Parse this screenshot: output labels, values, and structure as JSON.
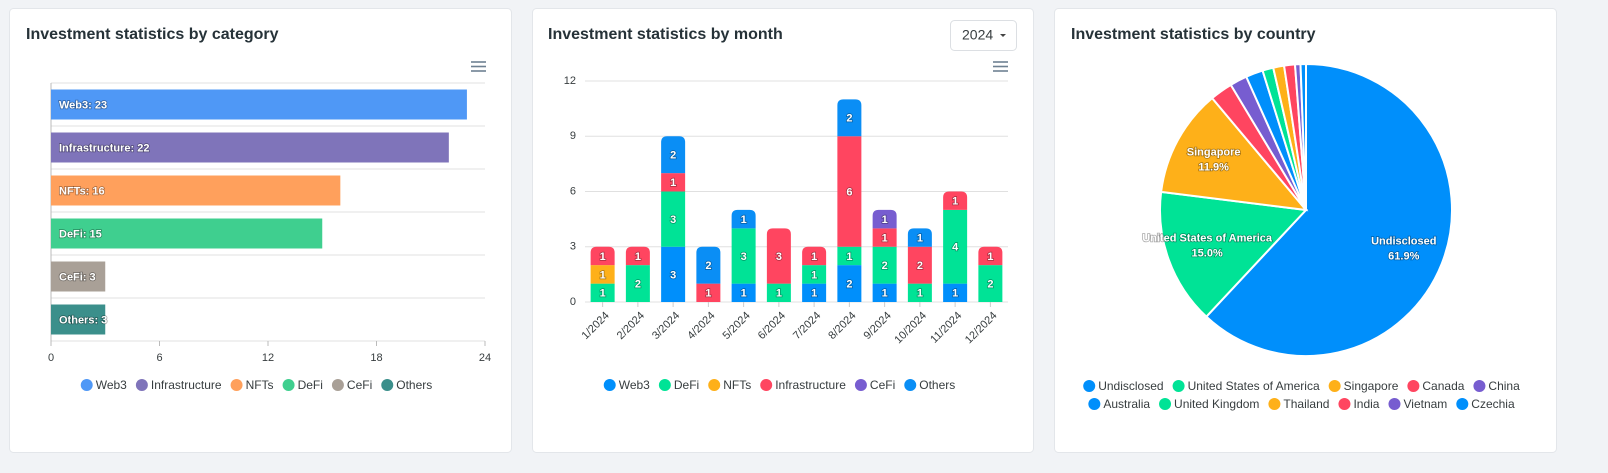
{
  "controls": {
    "year": "2024"
  },
  "chart_data": [
    {
      "type": "bar",
      "orientation": "horizontal",
      "title": "Investment statistics by category",
      "categories": [
        "Web3",
        "Infrastructure",
        "NFTs",
        "DeFi",
        "CeFi",
        "Others"
      ],
      "values": [
        23,
        22,
        16,
        15,
        3,
        3
      ],
      "value_labels": [
        "Web3: 23",
        "Infrastructure: 22",
        "NFTs: 16",
        "DeFi: 15",
        "CeFi: 3",
        "Others: 3"
      ],
      "colors": [
        "#4f98f6",
        "#7f74ba",
        "#ffa05c",
        "#3fcf8f",
        "#a9a097",
        "#3b8f8b"
      ],
      "xlim": [
        0,
        24
      ],
      "xticks": [
        0,
        6,
        12,
        18,
        24
      ],
      "legend": "bottom"
    },
    {
      "type": "stacked_bar",
      "title": "Investment statistics by month",
      "categories": [
        "1/2024",
        "2/2024",
        "3/2024",
        "4/2024",
        "5/2024",
        "6/2024",
        "7/2024",
        "8/2024",
        "9/2024",
        "10/2024",
        "11/2024",
        "12/2024"
      ],
      "series": [
        {
          "name": "Web3",
          "color": "#008ffb",
          "values": [
            0,
            0,
            3,
            0,
            1,
            0,
            1,
            2,
            1,
            0,
            1,
            0
          ]
        },
        {
          "name": "DeFi",
          "color": "#00e396",
          "values": [
            1,
            2,
            3,
            0,
            3,
            1,
            1,
            1,
            2,
            1,
            4,
            2
          ]
        },
        {
          "name": "NFTs",
          "color": "#feb019",
          "values": [
            1,
            0,
            0,
            0,
            0,
            0,
            0,
            0,
            0,
            0,
            0,
            0
          ]
        },
        {
          "name": "Infrastructure",
          "color": "#ff4560",
          "values": [
            1,
            1,
            1,
            1,
            0,
            3,
            1,
            6,
            1,
            2,
            1,
            1
          ]
        },
        {
          "name": "CeFi",
          "color": "#775dd0",
          "values": [
            0,
            0,
            0,
            0,
            0,
            0,
            0,
            0,
            1,
            0,
            0,
            0
          ]
        },
        {
          "name": "Others",
          "color": "#0a8ef5",
          "values": [
            0,
            0,
            2,
            2,
            1,
            0,
            0,
            2,
            0,
            1,
            0,
            0
          ]
        }
      ],
      "ylim": [
        0,
        12
      ],
      "yticks": [
        0,
        3,
        6,
        9,
        12
      ],
      "grid": true,
      "legend": "bottom"
    },
    {
      "type": "pie",
      "title": "Investment statistics by country",
      "categories": [
        "Undisclosed",
        "United States of America",
        "Singapore",
        "Canada",
        "China",
        "Australia",
        "United Kingdom",
        "Thailand",
        "India",
        "Vietnam",
        "Czechia"
      ],
      "values": [
        61.9,
        15.0,
        11.9,
        2.5,
        1.9,
        1.9,
        1.2,
        1.2,
        1.2,
        0.6,
        0.6
      ],
      "value_labels": [
        "61.9%",
        "15.0%",
        "11.9%",
        null,
        null,
        null,
        null,
        null,
        null,
        null,
        null
      ],
      "colors": [
        "#008ffb",
        "#00e396",
        "#feb019",
        "#ff4560",
        "#775dd0",
        "#008ffb",
        "#00e396",
        "#feb019",
        "#ff4560",
        "#775dd0",
        "#008ffb"
      ],
      "legend": "bottom"
    }
  ]
}
